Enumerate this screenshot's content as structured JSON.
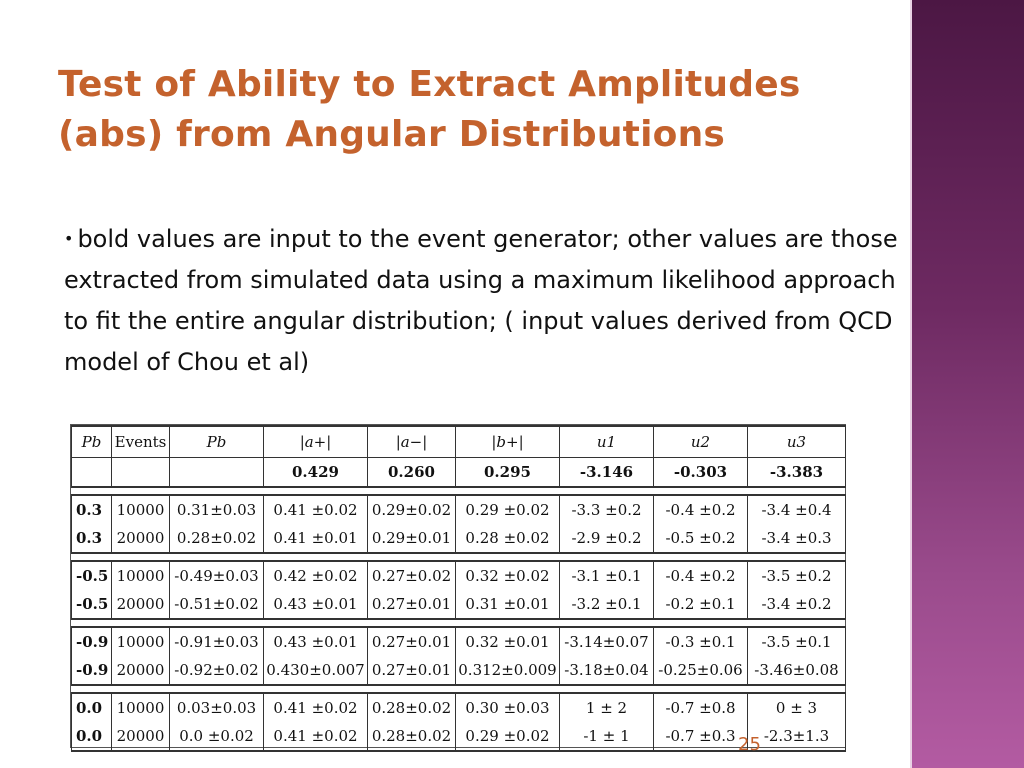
{
  "slide": {
    "title_line1": "Test of Ability to Extract Amplitudes",
    "title_line2": "(abs) from Angular Distributions",
    "bullet_symbol": "•",
    "body": "bold values are input to the event generator; other values are those extracted from simulated data using a maximum likelihood approach to fit the entire angular distribution; ( input values derived from QCD model of Chou et al)",
    "page_number": "25",
    "accent_color": "#c4622d",
    "sidebar_color": "#6e2a62"
  },
  "table": {
    "headers": [
      "Pb",
      "Events",
      "Pb",
      "|a+|",
      "|a−|",
      "|b+|",
      "u1",
      "u2",
      "u3"
    ],
    "inputs": [
      "",
      "",
      "",
      "0.429",
      "0.260",
      "0.295",
      "-3.146",
      "-0.303",
      "-3.383"
    ],
    "groups": [
      {
        "rows": [
          [
            "0.3",
            "10000",
            "0.31±0.03",
            "0.41 ±0.02",
            "0.29±0.02",
            "0.29 ±0.02",
            "-3.3 ±0.2",
            "-0.4 ±0.2",
            "-3.4 ±0.4"
          ],
          [
            "0.3",
            "20000",
            "0.28±0.02",
            "0.41 ±0.01",
            "0.29±0.01",
            "0.28 ±0.02",
            "-2.9 ±0.2",
            "-0.5 ±0.2",
            "-3.4 ±0.3"
          ]
        ]
      },
      {
        "rows": [
          [
            "-0.5",
            "10000",
            "-0.49±0.03",
            "0.42 ±0.02",
            "0.27±0.02",
            "0.32 ±0.02",
            "-3.1 ±0.1",
            "-0.4 ±0.2",
            "-3.5 ±0.2"
          ],
          [
            "-0.5",
            "20000",
            "-0.51±0.02",
            "0.43 ±0.01",
            "0.27±0.01",
            "0.31 ±0.01",
            "-3.2 ±0.1",
            "-0.2 ±0.1",
            "-3.4 ±0.2"
          ]
        ]
      },
      {
        "rows": [
          [
            "-0.9",
            "10000",
            "-0.91±0.03",
            "0.43 ±0.01",
            "0.27±0.01",
            "0.32 ±0.01",
            "-3.14±0.07",
            "-0.3 ±0.1",
            "-3.5 ±0.1"
          ],
          [
            "-0.9",
            "20000",
            "-0.92±0.02",
            "0.430±0.007",
            "0.27±0.01",
            "0.312±0.009",
            "-3.18±0.04",
            "-0.25±0.06",
            "-3.46±0.08"
          ]
        ]
      },
      {
        "rows": [
          [
            "0.0",
            "10000",
            "0.03±0.03",
            "0.41 ±0.02",
            "0.28±0.02",
            "0.30 ±0.03",
            "1 ± 2",
            "-0.7 ±0.8",
            "0 ± 3"
          ],
          [
            "0.0",
            "20000",
            "0.0 ±0.02",
            "0.41 ±0.02",
            "0.28±0.02",
            "0.29 ±0.02",
            "-1 ± 1",
            "-0.7 ±0.3",
            "-2.3±1.3"
          ]
        ]
      }
    ]
  }
}
